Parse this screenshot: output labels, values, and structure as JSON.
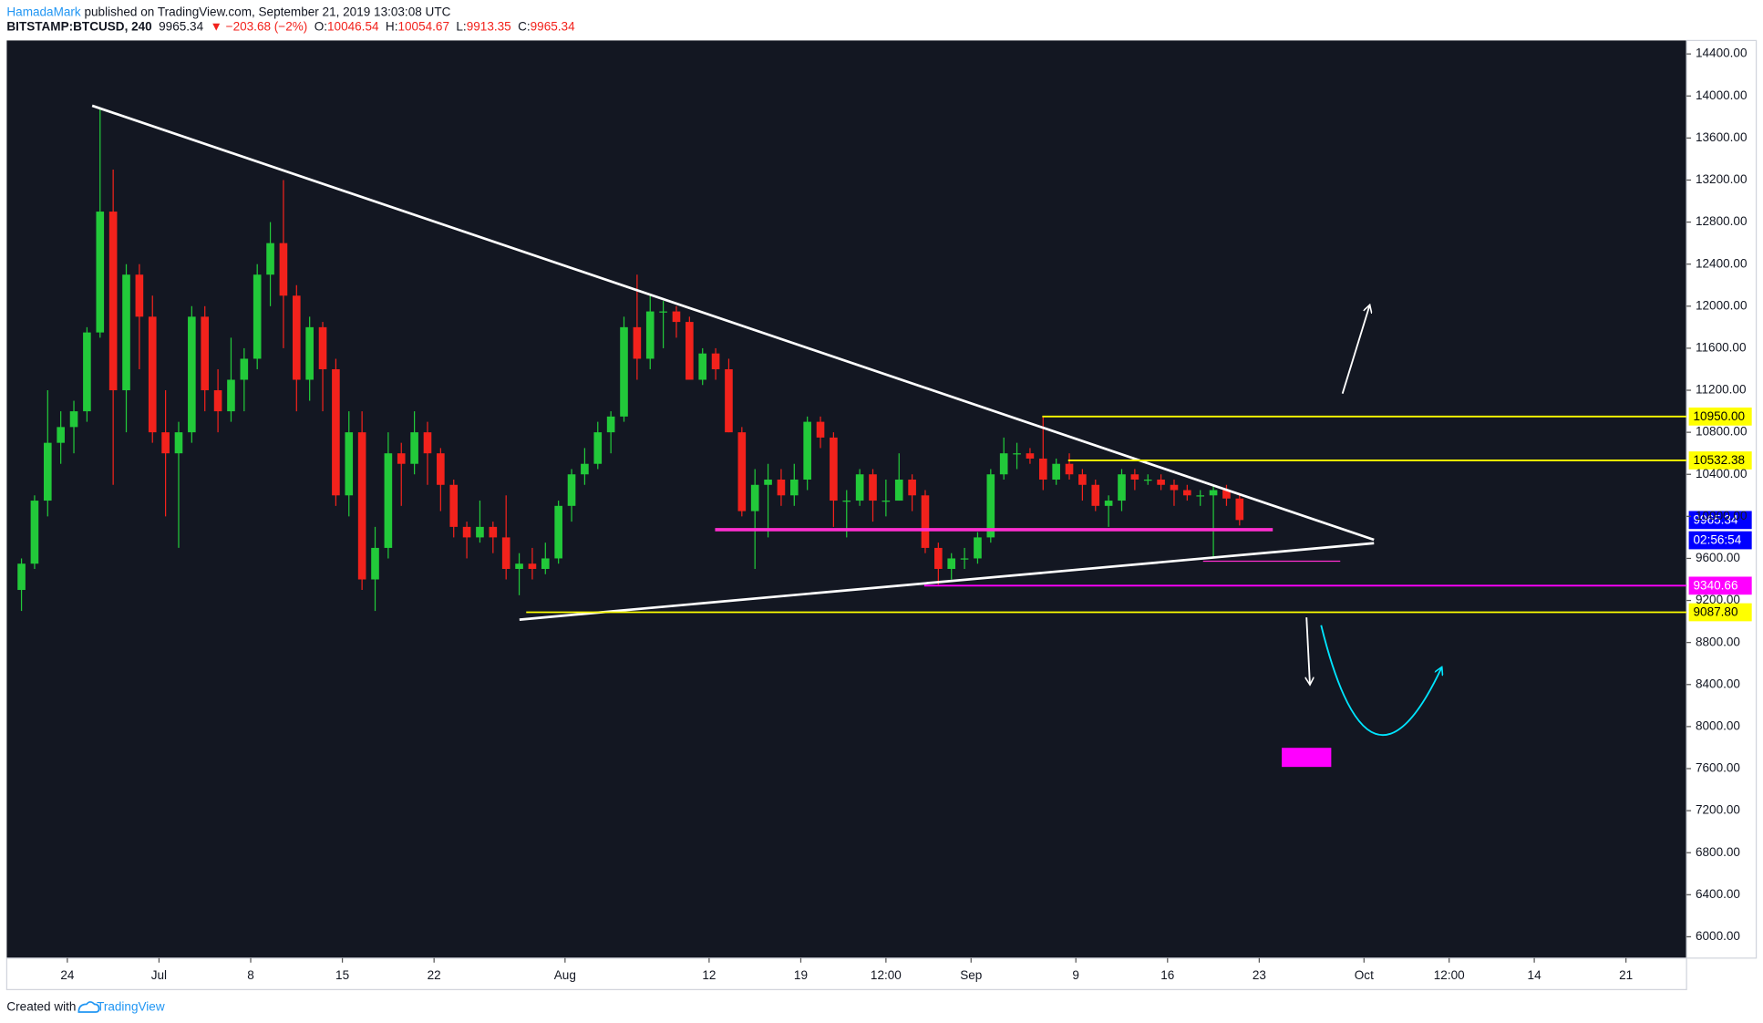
{
  "header": {
    "author": "HamadaMark",
    "published": "published on TradingView.com, September 21, 2019 13:03:08 UTC",
    "symbol": "BITSTAMP:BTCUSD, 240",
    "price": "9965.34",
    "change": "▼ −203.68 (−2%)",
    "ohlc": [
      {
        "label": "O:",
        "value": "10046.54"
      },
      {
        "label": "H:",
        "value": "10054.67"
      },
      {
        "label": "L:",
        "value": "9913.35"
      },
      {
        "label": "C:",
        "value": "9965.34"
      }
    ]
  },
  "footer": {
    "text": "Created with",
    "brand": "TradingView"
  },
  "chart_data": {
    "type": "candlestick",
    "up_color": "#22c93a",
    "down_color": "#f2221c",
    "grid": false,
    "xlim": [
      "2019-06-19T09:00",
      "2019-10-25T15:00"
    ],
    "xticks": [
      {
        "value": "2019-06-24",
        "label": "24"
      },
      {
        "value": "2019-07-01",
        "label": "Jul"
      },
      {
        "value": "2019-07-08",
        "label": "8"
      },
      {
        "value": "2019-07-15",
        "label": "15"
      },
      {
        "value": "2019-07-22",
        "label": "22"
      },
      {
        "value": "2019-08-01",
        "label": "Aug"
      },
      {
        "value": "2019-08-12",
        "label": "12"
      },
      {
        "value": "2019-08-19",
        "label": "19"
      },
      {
        "value": "2019-08-25T12:00",
        "label": "12:00"
      },
      {
        "value": "2019-09-01",
        "label": "Sep"
      },
      {
        "value": "2019-09-09",
        "label": "9"
      },
      {
        "value": "2019-09-16",
        "label": "16"
      },
      {
        "value": "2019-09-23",
        "label": "23"
      },
      {
        "value": "2019-10-01",
        "label": "Oct"
      },
      {
        "value": "2019-10-07T12:00",
        "label": "12:00"
      },
      {
        "value": "2019-10-14",
        "label": "14"
      },
      {
        "value": "2019-10-21",
        "label": "21"
      }
    ],
    "ylim": [
      5797,
      14528
    ],
    "yticks": [
      {
        "value": 6000,
        "label": "6000.00"
      },
      {
        "value": 6400,
        "label": "6400.00"
      },
      {
        "value": 6800,
        "label": "6800.00"
      },
      {
        "value": 7200,
        "label": "7200.00"
      },
      {
        "value": 7600,
        "label": "7600.00"
      },
      {
        "value": 8000,
        "label": "8000.00"
      },
      {
        "value": 8400,
        "label": "8400.00"
      },
      {
        "value": 8800,
        "label": "8800.00"
      },
      {
        "value": 9200,
        "label": "9200.00"
      },
      {
        "value": 9600,
        "label": "9600.00"
      },
      {
        "value": 10000,
        "label": "10000.00"
      },
      {
        "value": 10400,
        "label": "10400.00"
      },
      {
        "value": 10800,
        "label": "10800.00"
      },
      {
        "value": 11200,
        "label": "11200.00"
      },
      {
        "value": 11600,
        "label": "11600.00"
      },
      {
        "value": 12000,
        "label": "12000.00"
      },
      {
        "value": 12400,
        "label": "12400.00"
      },
      {
        "value": 12800,
        "label": "12800.00"
      },
      {
        "value": 13200,
        "label": "13200.00"
      },
      {
        "value": 13600,
        "label": "13600.00"
      },
      {
        "value": 14000,
        "label": "14000.00"
      },
      {
        "value": 14400,
        "label": "14400.00"
      }
    ],
    "price_labels": [
      {
        "value": 10950,
        "label": "10950.00",
        "color": "#ffff00",
        "text_color": "#000000"
      },
      {
        "value": 10532.38,
        "label": "10532.38",
        "color": "#ffff00",
        "text_color": "#000000"
      },
      {
        "value": 9965.34,
        "label": "9965.34",
        "color": "#0000ff",
        "text_color": "#ffffff"
      },
      {
        "value": 9340.66,
        "label": "9340.66",
        "color": "#ff00ff",
        "text_color": "#ffffff"
      },
      {
        "value": 9087.8,
        "label": "9087.80",
        "color": "#ffff00",
        "text_color": "#000000"
      }
    ],
    "countdown": "02:56:54",
    "x": [
      "2019-06-20",
      "2019-06-21",
      "2019-06-22",
      "2019-06-23",
      "2019-06-24",
      "2019-06-25",
      "2019-06-26",
      "2019-06-27",
      "2019-06-28",
      "2019-06-29",
      "2019-06-30",
      "2019-07-01",
      "2019-07-02",
      "2019-07-03",
      "2019-07-04",
      "2019-07-05",
      "2019-07-06",
      "2019-07-07",
      "2019-07-08",
      "2019-07-09",
      "2019-07-10",
      "2019-07-11",
      "2019-07-12",
      "2019-07-13",
      "2019-07-14",
      "2019-07-15",
      "2019-07-16",
      "2019-07-17",
      "2019-07-18",
      "2019-07-19",
      "2019-07-20",
      "2019-07-21",
      "2019-07-22",
      "2019-07-23",
      "2019-07-24",
      "2019-07-25",
      "2019-07-26",
      "2019-07-27",
      "2019-07-28",
      "2019-07-29",
      "2019-07-30",
      "2019-07-31",
      "2019-08-01",
      "2019-08-02",
      "2019-08-03",
      "2019-08-04",
      "2019-08-05",
      "2019-08-06",
      "2019-08-07",
      "2019-08-08",
      "2019-08-09",
      "2019-08-10",
      "2019-08-11",
      "2019-08-12",
      "2019-08-13",
      "2019-08-14",
      "2019-08-15",
      "2019-08-16",
      "2019-08-17",
      "2019-08-18",
      "2019-08-19",
      "2019-08-20",
      "2019-08-21",
      "2019-08-22",
      "2019-08-23",
      "2019-08-24",
      "2019-08-25",
      "2019-08-26",
      "2019-08-27",
      "2019-08-28",
      "2019-08-29",
      "2019-08-30",
      "2019-08-31",
      "2019-09-01",
      "2019-09-02",
      "2019-09-03",
      "2019-09-04",
      "2019-09-05",
      "2019-09-06",
      "2019-09-07",
      "2019-09-08",
      "2019-09-09",
      "2019-09-10",
      "2019-09-11",
      "2019-09-12",
      "2019-09-13",
      "2019-09-14",
      "2019-09-15",
      "2019-09-16",
      "2019-09-17",
      "2019-09-18",
      "2019-09-19",
      "2019-09-20",
      "2019-09-21"
    ],
    "open": [
      9300,
      9550,
      10150,
      10700,
      10850,
      11000,
      11750,
      12900,
      11200,
      12300,
      11900,
      10800,
      10600,
      10800,
      11900,
      11200,
      11000,
      11300,
      11500,
      12300,
      12600,
      12100,
      11300,
      11800,
      11400,
      10200,
      10800,
      9400,
      9700,
      10600,
      10500,
      10800,
      10600,
      10300,
      9900,
      9800,
      9900,
      9800,
      9500,
      9550,
      9500,
      9600,
      10100,
      10400,
      10500,
      10800,
      10950,
      11800,
      11500,
      11950,
      11950,
      11850,
      11300,
      11550,
      11400,
      10800,
      10050,
      10300,
      10350,
      10200,
      10350,
      10900,
      10750,
      10150,
      10150,
      10400,
      10150,
      10150,
      10350,
      10200,
      9700,
      9500,
      9600,
      9600,
      9800,
      10400,
      10600,
      10600,
      10550,
      10350,
      10500,
      10400,
      10300,
      10100,
      10150,
      10400,
      10350,
      10350,
      10300,
      10250,
      10200,
      10200,
      10250,
      10170
    ],
    "high": [
      9600,
      10200,
      11200,
      11000,
      11100,
      11800,
      13880,
      13300,
      12400,
      12400,
      12100,
      11200,
      10900,
      12000,
      12000,
      11400,
      11700,
      11600,
      12400,
      12800,
      13200,
      12200,
      11900,
      11850,
      11500,
      11000,
      11000,
      9900,
      10800,
      10700,
      11000,
      10900,
      10650,
      10350,
      9950,
      10150,
      9950,
      10200,
      9650,
      9700,
      9750,
      10150,
      10450,
      10650,
      10900,
      11000,
      11900,
      12300,
      12100,
      12050,
      12000,
      11900,
      11600,
      11600,
      11500,
      10850,
      10450,
      10500,
      10450,
      10500,
      10950,
      10950,
      10800,
      10250,
      10450,
      10450,
      10350,
      10600,
      10400,
      10250,
      9750,
      9650,
      9700,
      9850,
      10450,
      10750,
      10700,
      10650,
      10950,
      10550,
      10600,
      10450,
      10350,
      10200,
      10450,
      10450,
      10400,
      10400,
      10350,
      10300,
      10250,
      10300,
      10300,
      10200
    ],
    "low": [
      9100,
      9500,
      10000,
      10500,
      10600,
      10900,
      11700,
      10300,
      10800,
      11400,
      10700,
      10000,
      9700,
      10700,
      11000,
      10800,
      10900,
      11000,
      11400,
      12000,
      11600,
      11000,
      11100,
      11000,
      10100,
      10000,
      9300,
      9100,
      9600,
      10100,
      10400,
      10300,
      10050,
      9800,
      9600,
      9750,
      9650,
      9400,
      9250,
      9400,
      9450,
      9550,
      9950,
      10300,
      10450,
      10600,
      10900,
      11300,
      11400,
      11600,
      11700,
      11300,
      11250,
      11300,
      10800,
      10000,
      9500,
      9800,
      10100,
      10100,
      10250,
      10650,
      9900,
      9800,
      10100,
      9950,
      10000,
      10150,
      10050,
      9650,
      9350,
      9400,
      9500,
      9550,
      9750,
      10350,
      10450,
      10500,
      10250,
      10300,
      10350,
      10150,
      10050,
      9900,
      10050,
      10250,
      10300,
      10250,
      10100,
      10150,
      10100,
      9600,
      10100,
      9913.35
    ],
    "close": [
      9550,
      10150,
      10700,
      10850,
      11000,
      11750,
      12900,
      11200,
      12300,
      11900,
      10800,
      10600,
      10800,
      11900,
      11200,
      11000,
      11300,
      11500,
      12300,
      12600,
      12100,
      11300,
      11800,
      11400,
      10200,
      10800,
      9400,
      9700,
      10600,
      10500,
      10800,
      10600,
      10300,
      9900,
      9800,
      9900,
      9800,
      9500,
      9550,
      9500,
      9600,
      10100,
      10400,
      10500,
      10800,
      10950,
      11800,
      11500,
      11950,
      11950,
      11850,
      11300,
      11550,
      11400,
      10800,
      10050,
      10300,
      10350,
      10200,
      10350,
      10900,
      10750,
      10150,
      10150,
      10400,
      10150,
      10150,
      10350,
      10200,
      9700,
      9500,
      9600,
      9600,
      9800,
      10400,
      10600,
      10600,
      10550,
      10350,
      10500,
      10400,
      10300,
      10100,
      10150,
      10400,
      10350,
      10350,
      10300,
      10250,
      10200,
      10200,
      10250,
      10170,
      9965.34
    ]
  }
}
